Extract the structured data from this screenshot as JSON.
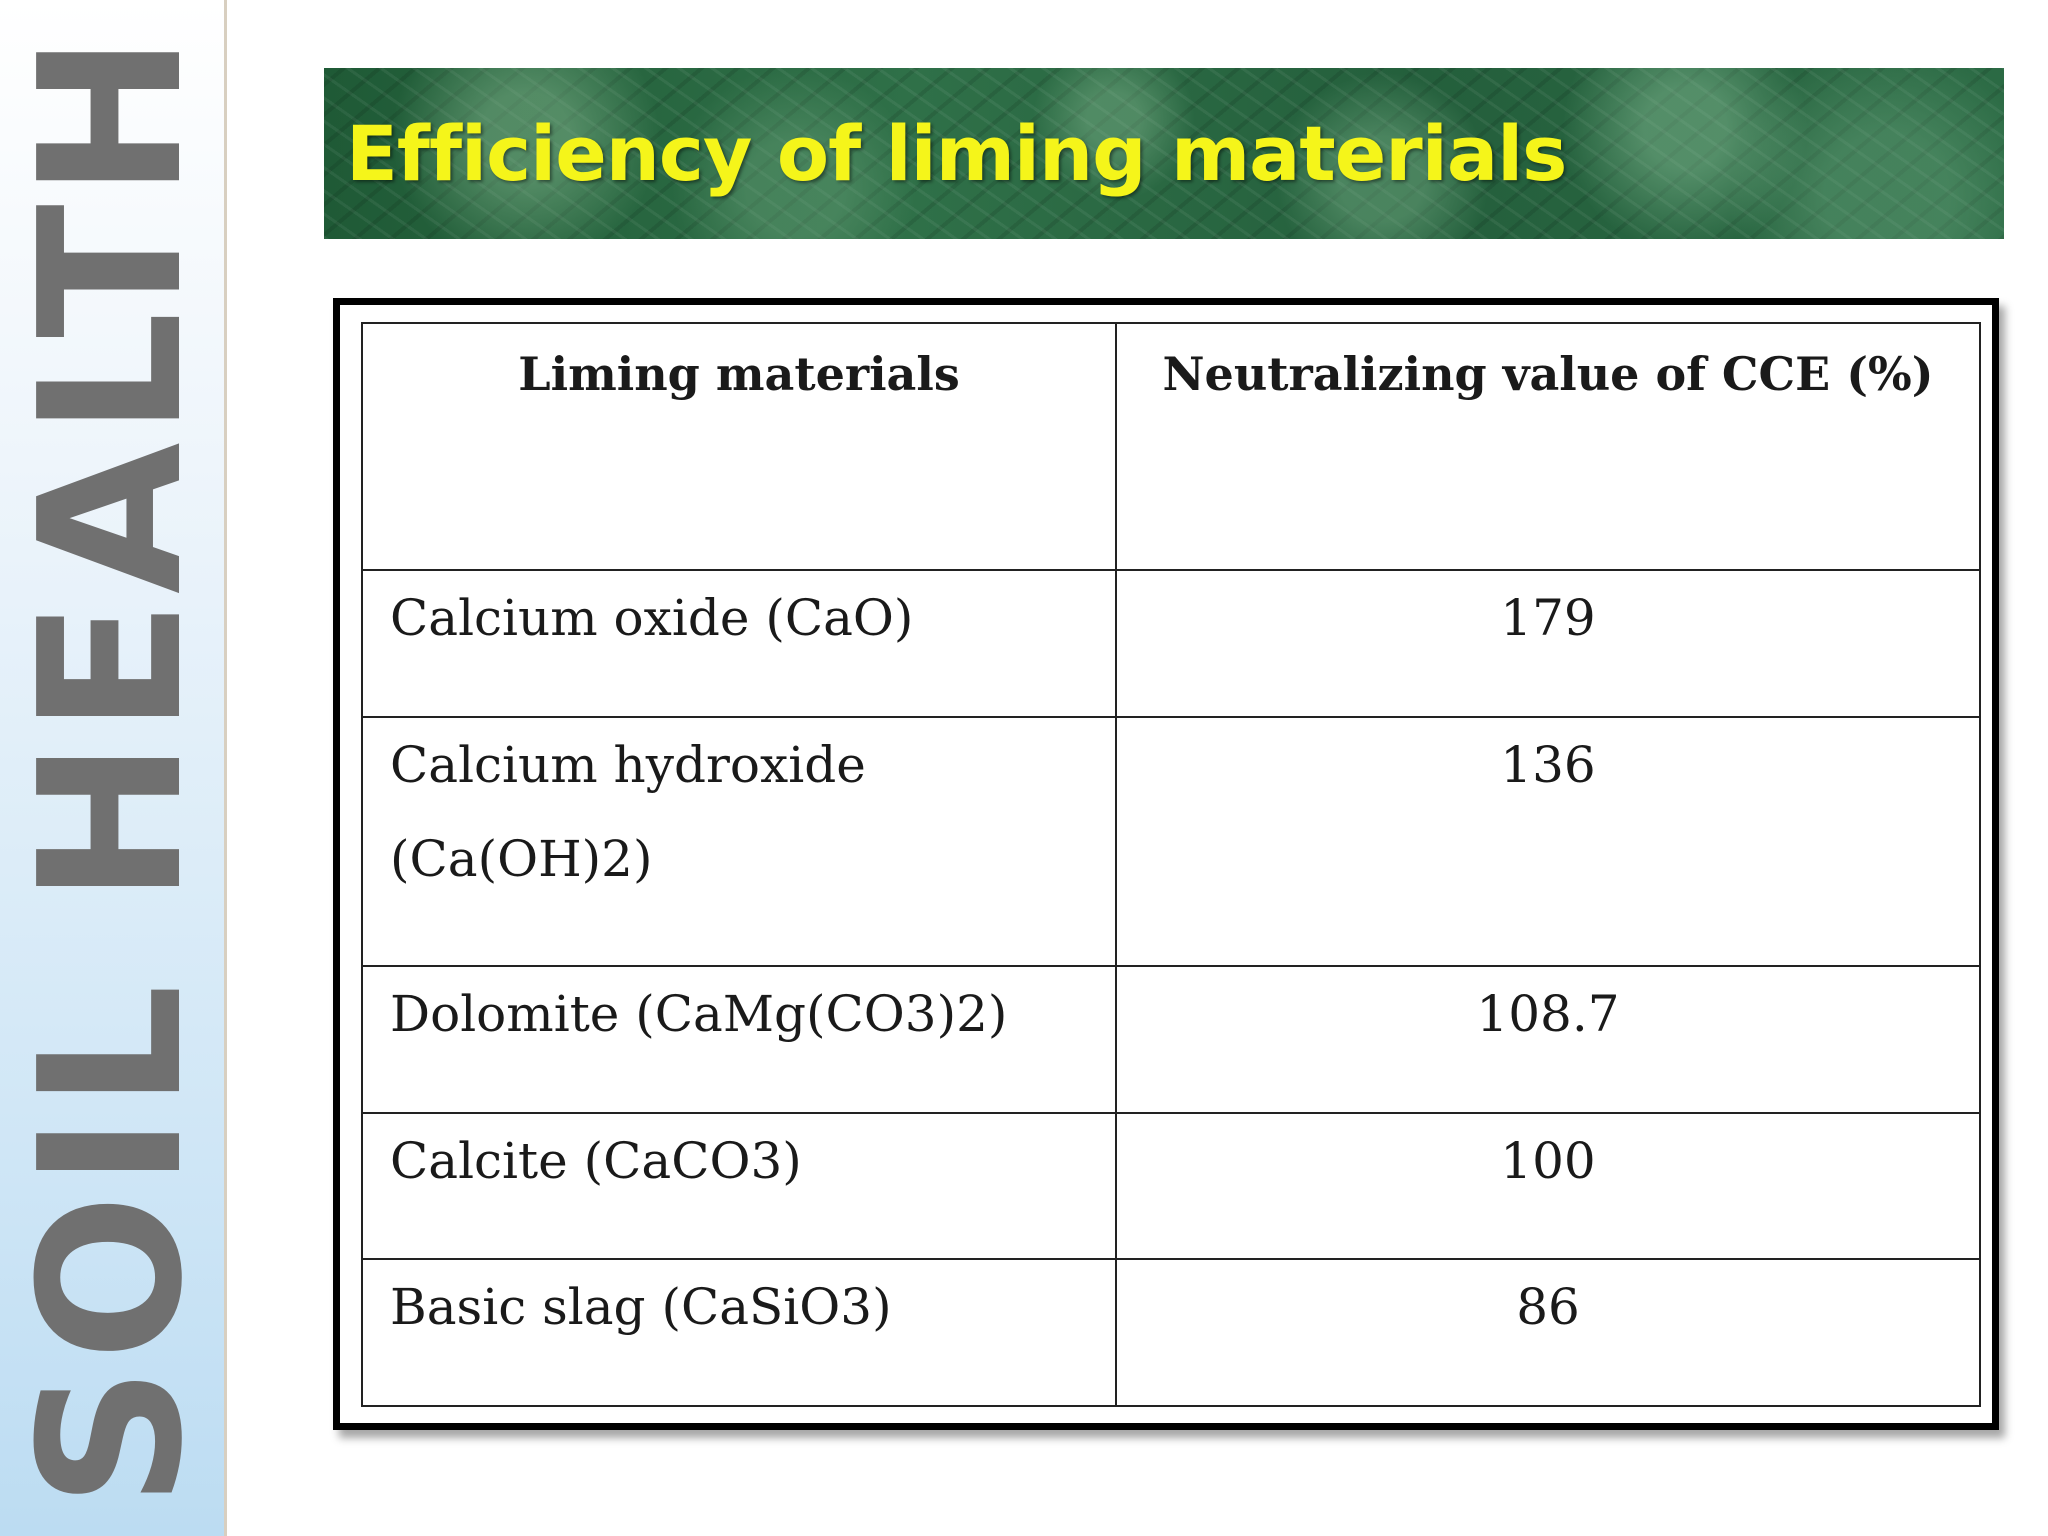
{
  "sidebar": {
    "brand_text": "SOIL HEALTH"
  },
  "header": {
    "title": "Efficiency of liming materials"
  },
  "table": {
    "columns": [
      "Liming materials",
      "Neutralizing value of CCE (%)"
    ],
    "rows": [
      {
        "material": "Calcium oxide (CaO)",
        "value": "179"
      },
      {
        "material": "Calcium hydroxide (Ca(OH)2)",
        "value": "136"
      },
      {
        "material": "Dolomite (CaMg(CO3)2)",
        "value": "108.7"
      },
      {
        "material": "Calcite (CaCO3)",
        "value": "100"
      },
      {
        "material": "Basic slag (CaSiO3)",
        "value": "86"
      }
    ]
  },
  "colors": {
    "title_text": "#f5f51a",
    "banner_green": "#2f7048",
    "sidebar_text": "#707070"
  }
}
